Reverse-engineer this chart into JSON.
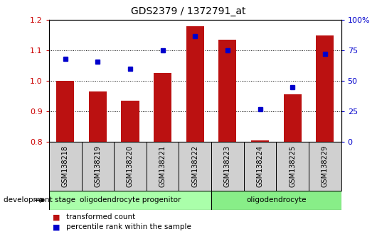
{
  "title": "GDS2379 / 1372791_at",
  "samples": [
    "GSM138218",
    "GSM138219",
    "GSM138220",
    "GSM138221",
    "GSM138222",
    "GSM138223",
    "GSM138224",
    "GSM138225",
    "GSM138229"
  ],
  "red_values": [
    1.0,
    0.965,
    0.935,
    1.025,
    1.18,
    1.135,
    0.805,
    0.955,
    1.15
  ],
  "blue_percentiles": [
    68,
    66,
    60,
    75,
    87,
    75,
    27,
    45,
    72
  ],
  "ylim_left": [
    0.8,
    1.2
  ],
  "ylim_right": [
    0,
    100
  ],
  "yticks_left": [
    0.8,
    0.9,
    1.0,
    1.1,
    1.2
  ],
  "ytick_labels_left": [
    "0.8",
    "0.9",
    "1.0",
    "1.1",
    "1.2"
  ],
  "yticks_right": [
    0,
    25,
    50,
    75,
    100
  ],
  "ytick_labels_right": [
    "0",
    "25",
    "50",
    "75",
    "100%"
  ],
  "bar_color": "#bb1111",
  "dot_color": "#0000cc",
  "group1_label": "oligodendrocyte progenitor",
  "group2_label": "oligodendrocyte",
  "group1_indices": [
    0,
    1,
    2,
    3,
    4
  ],
  "group2_indices": [
    5,
    6,
    7,
    8
  ],
  "legend1": "transformed count",
  "legend2": "percentile rank within the sample",
  "dev_stage_label": "development stage",
  "group1_color": "#aaffaa",
  "group2_color": "#88ee88",
  "bar_color_left_axis": "#cc0000",
  "dot_color_right_axis": "#0000cc",
  "sample_box_color": "#d0d0d0",
  "fig_width": 5.3,
  "fig_height": 3.54,
  "dpi": 100
}
